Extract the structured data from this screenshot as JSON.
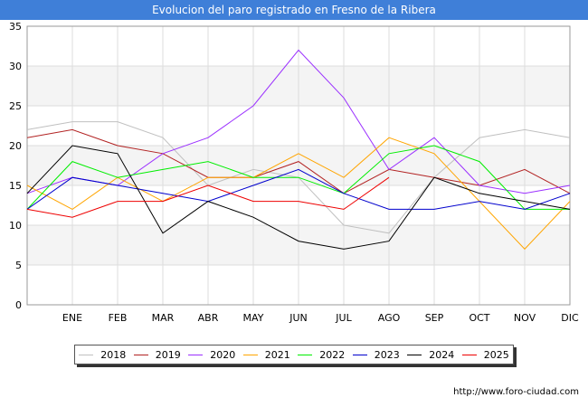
{
  "title": "Evolucion del paro registrado en Fresno de la Ribera",
  "source": "http://www.foro-ciudad.com",
  "chart_data": {
    "type": "line",
    "title": "Evolucion del paro registrado en Fresno de la Ribera",
    "categories": [
      "",
      "ENE",
      "FEB",
      "MAR",
      "ABR",
      "MAY",
      "JUN",
      "JUL",
      "AGO",
      "SEP",
      "OCT",
      "NOV",
      "DIC"
    ],
    "ylim": [
      0,
      35
    ],
    "yticks": [
      0,
      5,
      10,
      15,
      20,
      25,
      30,
      35
    ],
    "grid": true,
    "legend_position": "bottom",
    "series": [
      {
        "name": "2018",
        "color": "#c0c0c0",
        "values": [
          22,
          23,
          23,
          21,
          15,
          17,
          16,
          10,
          9,
          16,
          21,
          22,
          21
        ]
      },
      {
        "name": "2019",
        "color": "#b22222",
        "values": [
          21,
          22,
          20,
          19,
          16,
          16,
          18,
          14,
          17,
          16,
          15,
          17,
          14
        ]
      },
      {
        "name": "2020",
        "color": "#9b30ff",
        "values": [
          14,
          16,
          15,
          19,
          21,
          25,
          32,
          26,
          17,
          21,
          15,
          14,
          15
        ]
      },
      {
        "name": "2021",
        "color": "#ffa500",
        "values": [
          15,
          12,
          16,
          13,
          16,
          16,
          19,
          16,
          21,
          19,
          13,
          7,
          13
        ]
      },
      {
        "name": "2022",
        "color": "#00ee00",
        "values": [
          12,
          18,
          16,
          17,
          18,
          16,
          16,
          14,
          19,
          20,
          18,
          12,
          12
        ]
      },
      {
        "name": "2023",
        "color": "#0000cd",
        "values": [
          12,
          16,
          15,
          14,
          13,
          15,
          17,
          14,
          12,
          12,
          13,
          12,
          14
        ]
      },
      {
        "name": "2024",
        "color": "#000000",
        "values": [
          14,
          20,
          19,
          9,
          13,
          11,
          8,
          7,
          8,
          16,
          14,
          13,
          12
        ]
      },
      {
        "name": "2025",
        "color": "#ee0000",
        "values": [
          12,
          11,
          13,
          13,
          15,
          13,
          13,
          12,
          16,
          null,
          null,
          null,
          null
        ]
      }
    ]
  }
}
